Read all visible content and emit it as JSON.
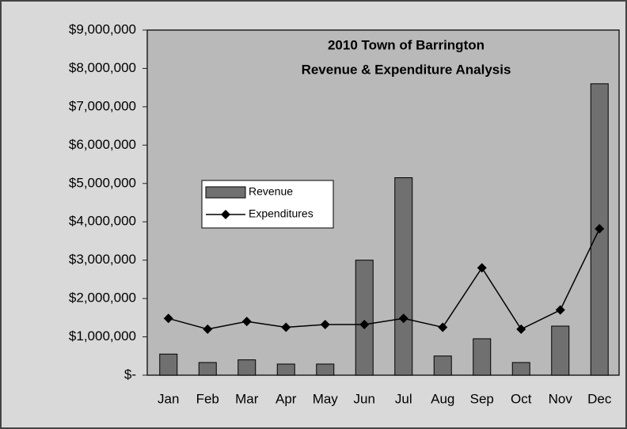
{
  "chart_data": {
    "type": "bar_line",
    "title": [
      "2010 Town of Barrington",
      "Revenue & Expenditure Analysis"
    ],
    "categories": [
      "Jan",
      "Feb",
      "Mar",
      "Apr",
      "May",
      "Jun",
      "Jul",
      "Aug",
      "Sep",
      "Oct",
      "Nov",
      "Dec"
    ],
    "series": [
      {
        "name": "Revenue",
        "type": "bar",
        "color": "#707070",
        "values": [
          550000,
          330000,
          400000,
          290000,
          290000,
          3000000,
          5150000,
          500000,
          950000,
          330000,
          1280000,
          7600000
        ]
      },
      {
        "name": "Expenditures",
        "type": "line",
        "color": "#000000",
        "values": [
          1480000,
          1200000,
          1400000,
          1250000,
          1320000,
          1320000,
          1480000,
          1250000,
          2800000,
          1200000,
          1700000,
          3820000
        ]
      }
    ],
    "ylim": [
      0,
      9000000
    ],
    "yticks": [
      {
        "value": 0,
        "label": "$-"
      },
      {
        "value": 1000000,
        "label": "$1,000,000"
      },
      {
        "value": 2000000,
        "label": "$2,000,000"
      },
      {
        "value": 3000000,
        "label": "$3,000,000"
      },
      {
        "value": 4000000,
        "label": "$4,000,000"
      },
      {
        "value": 5000000,
        "label": "$5,000,000"
      },
      {
        "value": 6000000,
        "label": "$6,000,000"
      },
      {
        "value": 7000000,
        "label": "$7,000,000"
      },
      {
        "value": 8000000,
        "label": "$8,000,000"
      },
      {
        "value": 9000000,
        "label": "$9,000,000"
      }
    ],
    "legend": "left"
  }
}
